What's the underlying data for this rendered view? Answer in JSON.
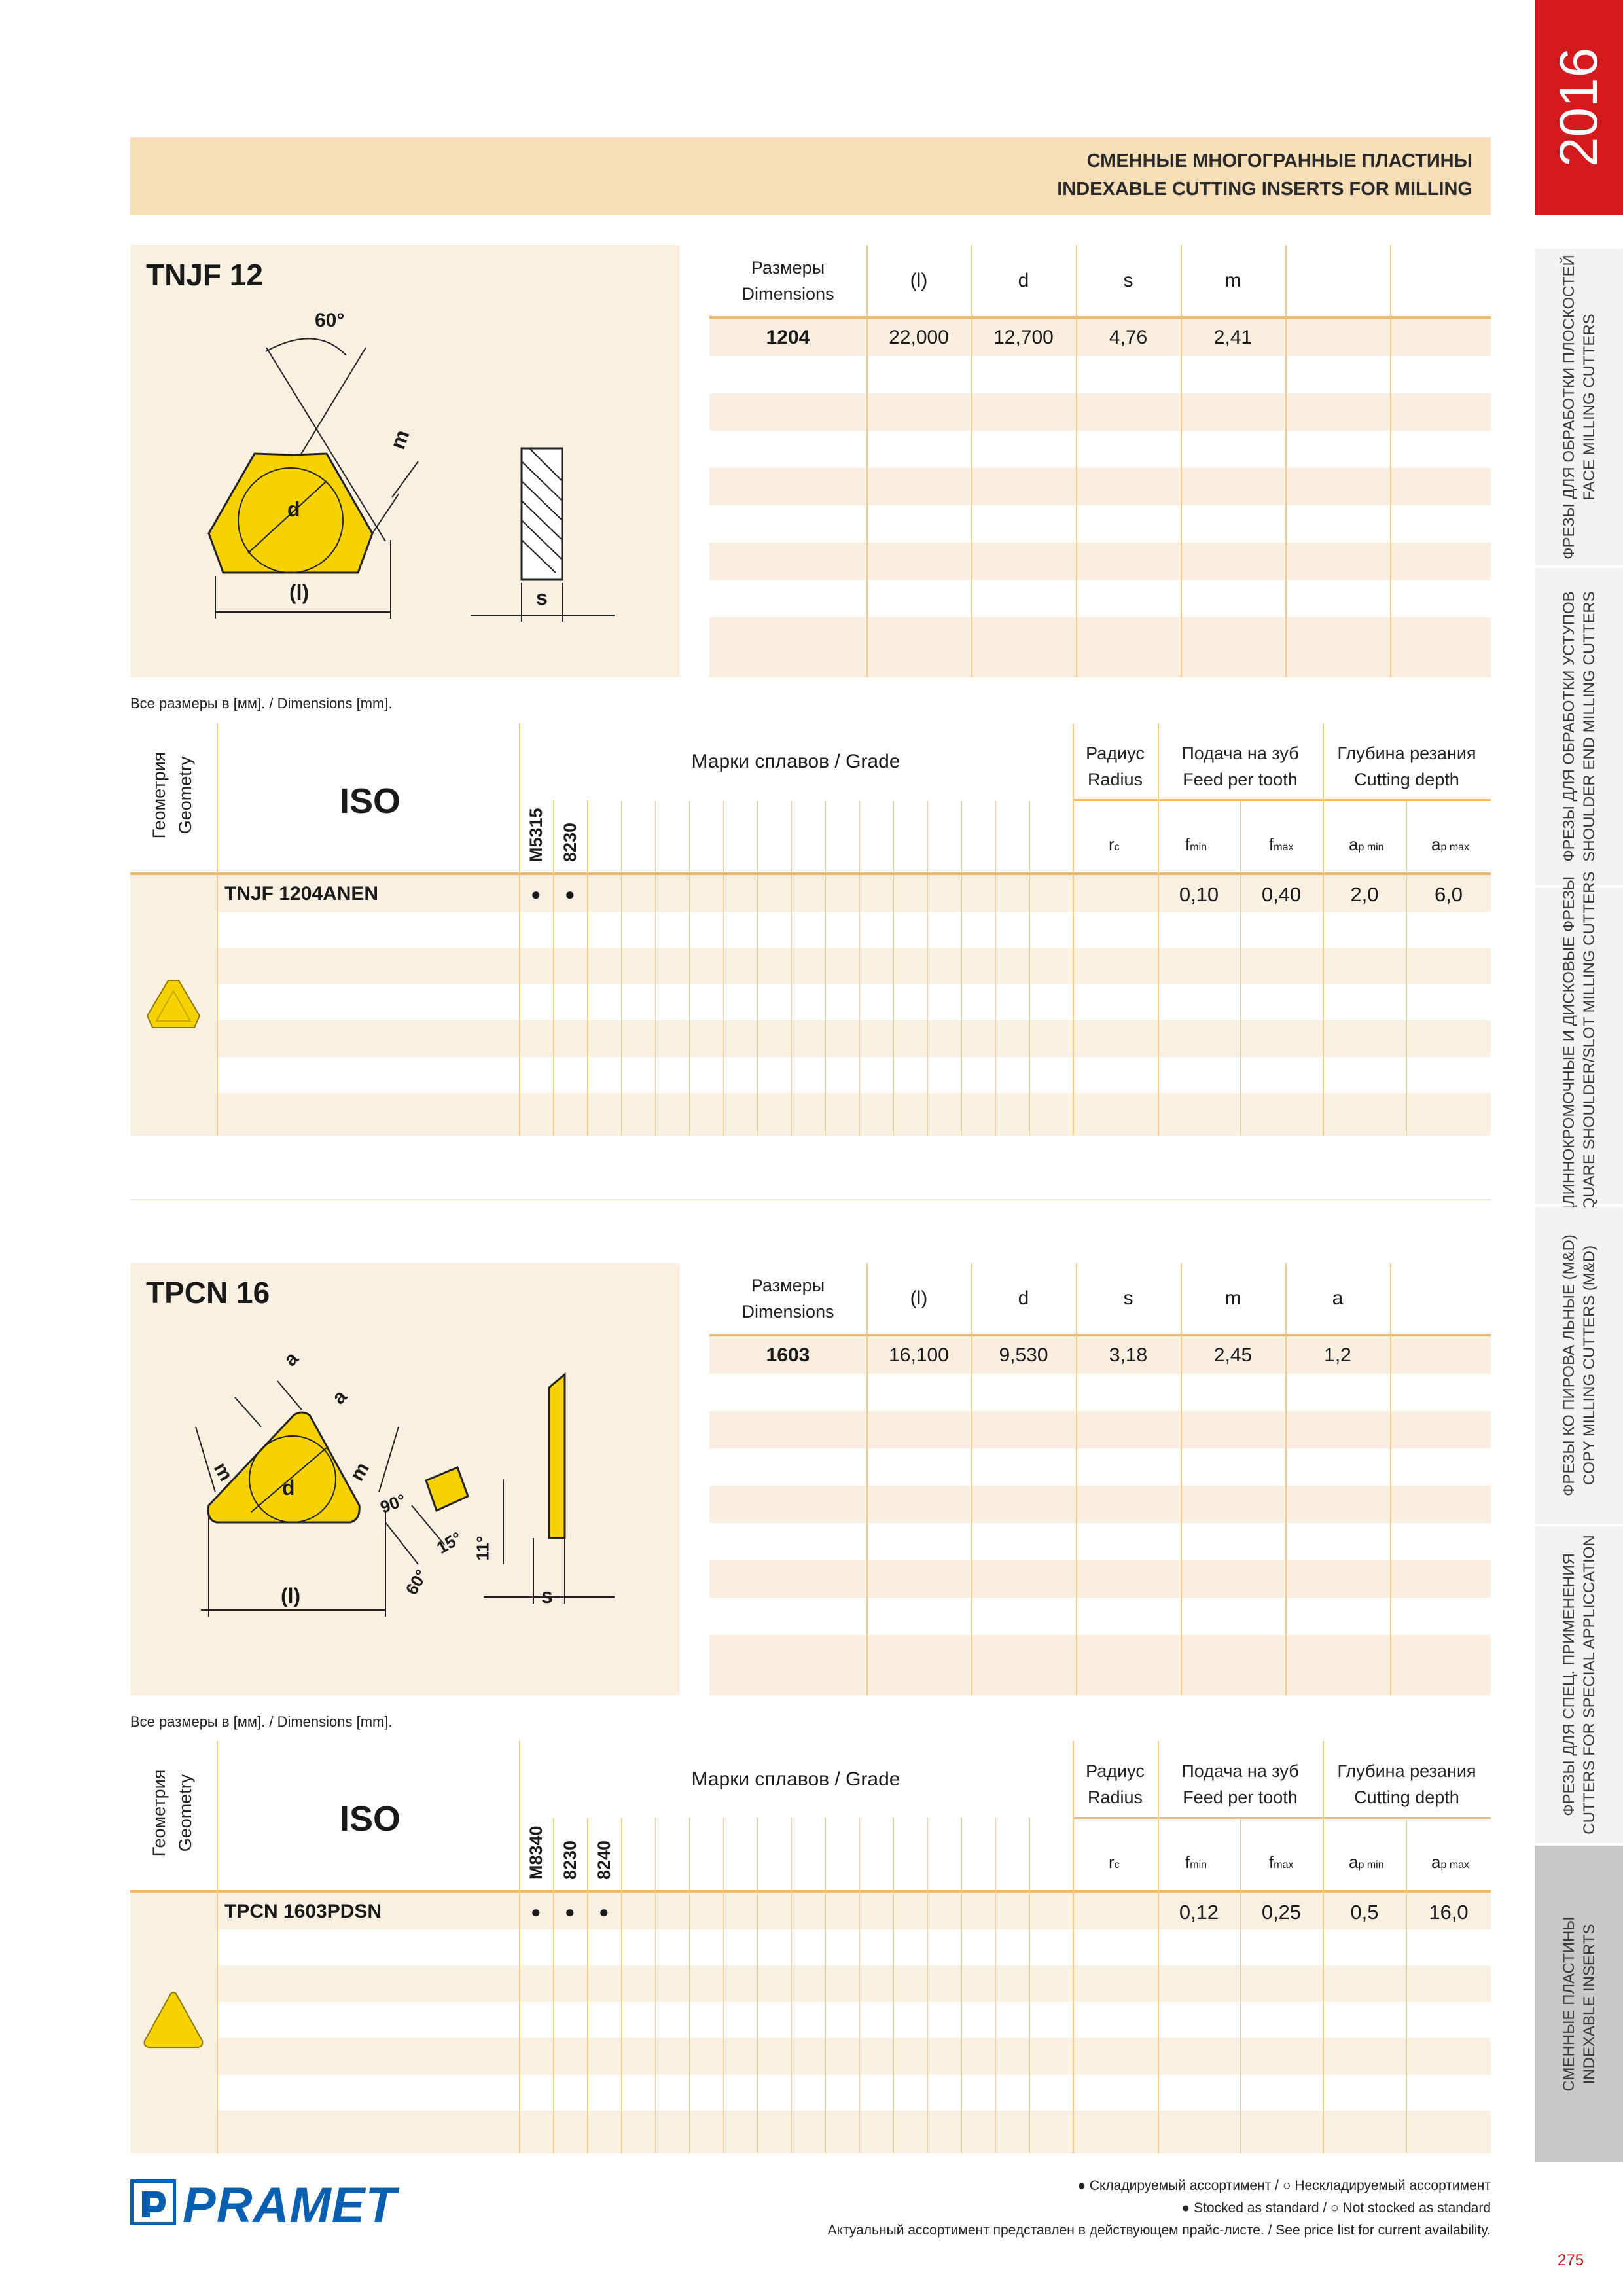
{
  "header": {
    "line1": "СМЕННЫЕ МНОГОГРАННЫЕ ПЛАСТИНЫ",
    "line2": "INDEXABLE CUTTING INSERTS FOR MILLING"
  },
  "sidebar": {
    "year": "2016",
    "tabs": [
      {
        "ru": "ФРЕЗЫ ДЛЯ ОБРАБОТКИ ПЛОСКОСТЕЙ",
        "en": "FACE MILLING CUTTERS"
      },
      {
        "ru": "ФРЕЗЫ ДЛЯ ОБРАБОТКИ УСТУПОВ",
        "en": "SHOULDER END MILLING CUTTERS"
      },
      {
        "ru": "ДЛИННОКРОМОЧНЫЕ И ДИСКОВЫЕ ФРЕЗЫ",
        "en": "SQUARE SHOULDER/SLOT MILLING CUTTERS"
      },
      {
        "ru": "ФРЕЗЫ КО ПИРОВА ЛЬНЫЕ (M&D)",
        "en": "COPY MILLING CUTTERS (M&D)"
      },
      {
        "ru": "ФРЕЗЫ ДЛЯ СПЕЦ. ПРИМЕНЕНИЯ",
        "en": "CUTTERS FOR SPECIAL APPLICCATION"
      },
      {
        "ru": "СМЕННЫЕ ПЛАСТИНЫ",
        "en": "INDEXABLE INSERTS"
      }
    ]
  },
  "common": {
    "dimensions_ru": "Размеры",
    "dimensions_en": "Dimensions",
    "note": "Все размеры в [мм]. / Dimensions [mm].",
    "geometry_ru": "Геометрия",
    "geometry_en": "Geometry",
    "iso": "ISO",
    "grade": "Марки сплавов / Grade",
    "radius_ru": "Радиус",
    "radius_en": "Radius",
    "feed_ru": "Подача на зуб",
    "feed_en": "Feed per tooth",
    "depth_ru": "Глубина резания",
    "depth_en": "Cutting depth",
    "rc": "r",
    "rc_sub": "c",
    "fmin": "f",
    "fmin_sub": "min",
    "fmax": "f",
    "fmax_sub": "max",
    "apmin": "a",
    "apmin_sub": "p min",
    "apmax": "a",
    "apmax_sub": "p max",
    "dot": "●"
  },
  "section1": {
    "title": "TNJF 12",
    "drawing_labels": {
      "angle": "60°",
      "m": "m",
      "d": "d",
      "l": "(l)",
      "s": "s"
    },
    "dim_headers": [
      "(l)",
      "d",
      "s",
      "m",
      ""
    ],
    "dim_row": {
      "size": "1204",
      "values": [
        "22,000",
        "12,700",
        "4,76",
        "2,41",
        ""
      ]
    },
    "grades": [
      "M5315",
      "8230"
    ],
    "insert": {
      "name": "TNJF 1204ANEN",
      "marks": [
        "●",
        "●"
      ],
      "fmin": "0,10",
      "fmax": "0,40",
      "apmin": "2,0",
      "apmax": "6,0"
    }
  },
  "section2": {
    "title": "TPCN 16",
    "drawing_labels": {
      "a": "a",
      "m": "m",
      "d": "d",
      "l": "(l)",
      "s": "s",
      "a90": "90°",
      "a15": "15°",
      "a60": "60°",
      "a11": "11°"
    },
    "dim_headers": [
      "(l)",
      "d",
      "s",
      "m",
      "a"
    ],
    "dim_row": {
      "size": "1603",
      "values": [
        "16,100",
        "9,530",
        "3,18",
        "2,45",
        "1,2"
      ]
    },
    "grades": [
      "M8340",
      "8230",
      "8240"
    ],
    "insert": {
      "name": "TPCN 1603PDSN",
      "marks": [
        "●",
        "●",
        "●"
      ],
      "fmin": "0,12",
      "fmax": "0,25",
      "apmin": "0,5",
      "apmax": "16,0"
    }
  },
  "footer": {
    "logo": "PRAMET",
    "line1": "● Складируемый ассортимент / ○ Нескладируемый ассортимент",
    "line2": "● Stocked as standard / ○ Not stocked as standard",
    "line3": "Актуальный ассортимент представлен в действующем прайс-листе. / See price list for current availability.",
    "page": "275"
  },
  "colors": {
    "accent_red": "#d31a1f",
    "insert_yellow": "#f5d200",
    "header_band": "#f9dfb7",
    "line_orange": "#f0b660"
  }
}
